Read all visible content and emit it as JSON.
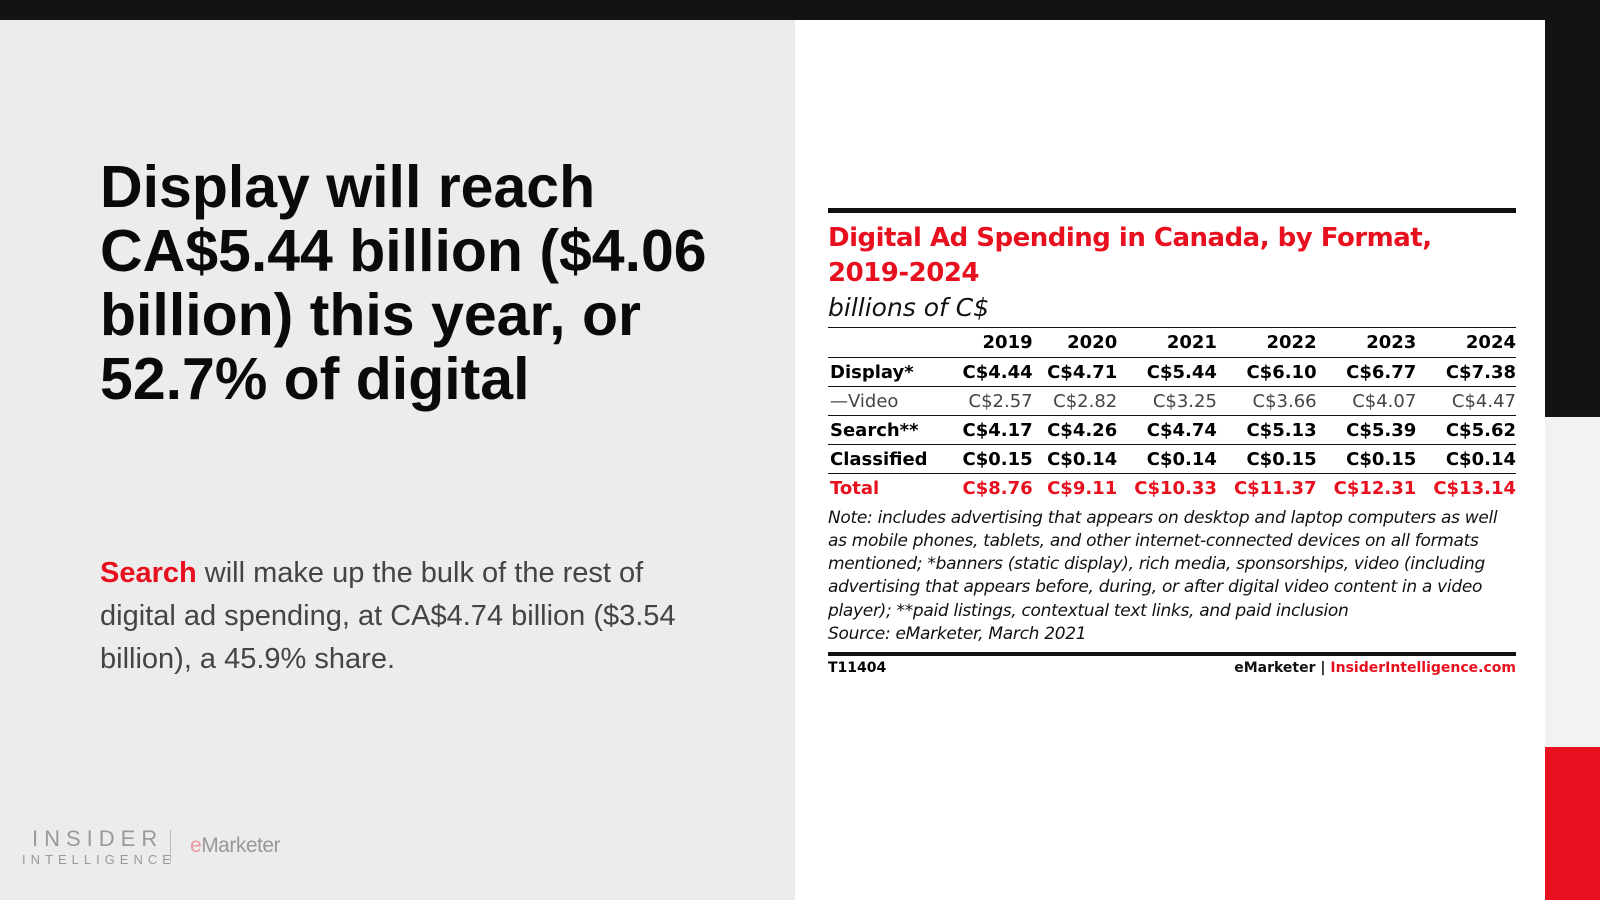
{
  "headline": "Display will reach CA$5.44 billion ($4.06 billion) this year, or 52.7% of digital",
  "body": {
    "highlight": "Search",
    "rest": " will make up the bulk of the rest of digital ad spending, at CA$4.74 billion ($3.54 billion), a 45.9% share."
  },
  "logos": {
    "insider_line1": "INSIDER",
    "insider_line2": "INTELLIGENCE",
    "emarketer_e": "e",
    "emarketer_rest": "Marketer"
  },
  "chart": {
    "title": "Digital Ad Spending in Canada, by Format, 2019-2024",
    "subtitle": "billions of C$",
    "columns": [
      "",
      "2019",
      "2020",
      "2021",
      "2022",
      "2023",
      "2024"
    ],
    "rows": [
      {
        "label": "Display*",
        "values": [
          "C$4.44",
          "C$4.71",
          "C$5.44",
          "C$6.10",
          "C$6.77",
          "C$7.38"
        ]
      },
      {
        "label": "—Video",
        "values": [
          "C$2.57",
          "C$2.82",
          "C$3.25",
          "C$3.66",
          "C$4.07",
          "C$4.47"
        ]
      },
      {
        "label": "Search**",
        "values": [
          "C$4.17",
          "C$4.26",
          "C$4.74",
          "C$5.13",
          "C$5.39",
          "C$5.62"
        ]
      },
      {
        "label": "Classified",
        "values": [
          "C$0.15",
          "C$0.14",
          "C$0.14",
          "C$0.15",
          "C$0.15",
          "C$0.14"
        ]
      },
      {
        "label": "Total",
        "values": [
          "C$8.76",
          "C$9.11",
          "C$10.33",
          "C$11.37",
          "C$12.31",
          "C$13.14"
        ]
      }
    ],
    "note": "Note: includes advertising that appears on desktop and laptop computers as well as mobile phones, tablets, and other internet-connected devices on all formats mentioned; *banners (static display), rich media, sponsorships, video (including advertising that appears before, during, or after digital video content in a video player); **paid listings, contextual text links, and paid inclusion",
    "source": "Source: eMarketer, March 2021",
    "id": "T11404",
    "brand": "eMarketer",
    "sep": " | ",
    "site": "InsiderIntelligence.com"
  },
  "colors": {
    "accent": "#e8101e",
    "dark": "#131313"
  }
}
